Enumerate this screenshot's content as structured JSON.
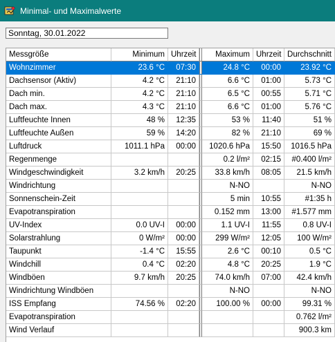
{
  "window": {
    "title": "Minimal- und Maximalwerte",
    "icon": "app-icon"
  },
  "date_field": {
    "value": "Sonntag, 30.01.2022"
  },
  "columns": [
    "Messgröße",
    "Minimum",
    "Uhrzeit",
    "Maximum",
    "Uhrzeit",
    "Durchschnitt"
  ],
  "selected_row": 0,
  "rows": [
    [
      "Wohnzimmer",
      "23.6 °C",
      "07:30",
      "24.8 °C",
      "00:00",
      "23.92 °C"
    ],
    [
      "Dachsensor (Aktiv)",
      "4.2 °C",
      "21:10",
      "6.6 °C",
      "01:00",
      "5.73 °C"
    ],
    [
      "Dach min.",
      "4.2 °C",
      "21:10",
      "6.5 °C",
      "00:55",
      "5.71 °C"
    ],
    [
      "Dach max.",
      "4.3 °C",
      "21:10",
      "6.6 °C",
      "01:00",
      "5.76 °C"
    ],
    [
      "Luftfeuchte Innen",
      "48 %",
      "12:35",
      "53 %",
      "11:40",
      "51 %"
    ],
    [
      "Luftfeuchte Außen",
      "59 %",
      "14:20",
      "82 %",
      "21:10",
      "69 %"
    ],
    [
      "Luftdruck",
      "1011.1 hPa",
      "00:00",
      "1020.6 hPa",
      "15:50",
      "1016.5 hPa"
    ],
    [
      "Regenmenge",
      "",
      "",
      "0.2 l/m²",
      "02:15",
      "#0.400 l/m²"
    ],
    [
      "Windgeschwindigkeit",
      "3.2 km/h",
      "20:25",
      "33.8 km/h",
      "08:05",
      "21.5 km/h"
    ],
    [
      "Windrichtung",
      "",
      "",
      "N-NO",
      "",
      "N-NO"
    ],
    [
      "Sonnenschein-Zeit",
      "",
      "",
      "5 min",
      "10:55",
      "#1:35 h"
    ],
    [
      "Evapotranspiration",
      "",
      "",
      "0.152 mm",
      "13:00",
      "#1.577 mm"
    ],
    [
      "UV-Index",
      "0.0 UV-I",
      "00:00",
      "1.1 UV-I",
      "11:55",
      "0.8 UV-I"
    ],
    [
      "Solarstrahlung",
      "0 W/m²",
      "00:00",
      "299 W/m²",
      "12:05",
      "100 W/m²"
    ],
    [
      "Taupunkt",
      "-1.4 °C",
      "15:55",
      "2.6 °C",
      "00:10",
      "0.5 °C"
    ],
    [
      "Windchill",
      "0.4 °C",
      "02:20",
      "4.8 °C",
      "20:25",
      "1.9 °C"
    ],
    [
      "Windböen",
      "9.7 km/h",
      "20:25",
      "74.0 km/h",
      "07:00",
      "42.4 km/h"
    ],
    [
      "Windrichtung Windböen",
      "",
      "",
      "N-NO",
      "",
      "N-NO"
    ],
    [
      "ISS Empfang",
      "74.56 %",
      "02:20",
      "100.00 %",
      "00:00",
      "99.31 %"
    ],
    [
      "Evapotranspiration",
      "",
      "",
      "",
      "",
      "0.762 l/m²"
    ],
    [
      "Wind Verlauf",
      "",
      "",
      "",
      "",
      "900.3 km"
    ]
  ]
}
